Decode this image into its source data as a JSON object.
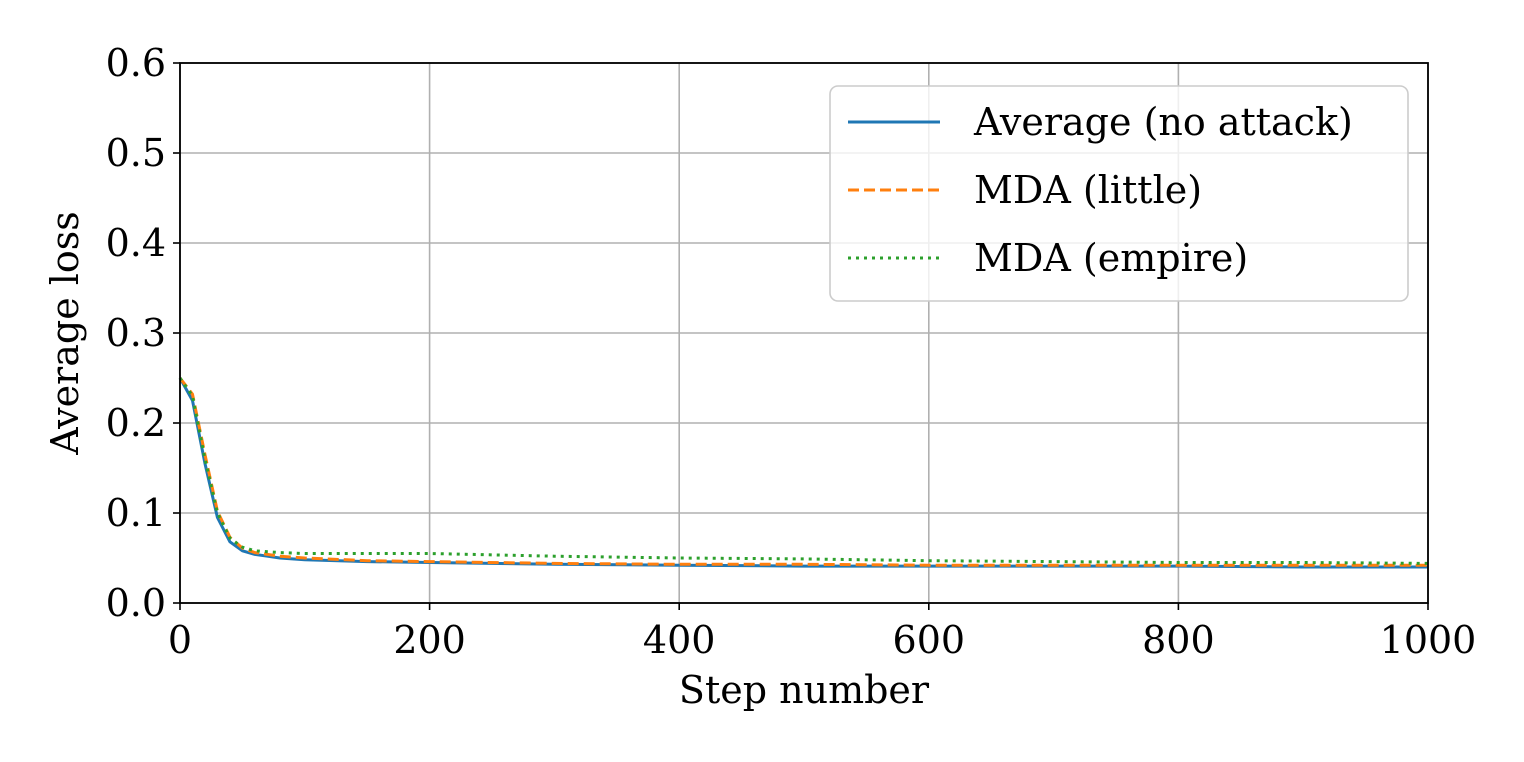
{
  "chart_data": {
    "type": "line",
    "title": "",
    "xlabel": "Step number",
    "ylabel": "Average loss",
    "xlim": [
      0,
      1000
    ],
    "ylim": [
      0.0,
      0.6
    ],
    "xticks": [
      0,
      200,
      400,
      600,
      800,
      1000
    ],
    "xtick_labels": [
      "0",
      "200",
      "400",
      "600",
      "800",
      "1000"
    ],
    "yticks": [
      0.0,
      0.1,
      0.2,
      0.3,
      0.4,
      0.5,
      0.6
    ],
    "ytick_labels": [
      "0.0",
      "0.1",
      "0.2",
      "0.3",
      "0.4",
      "0.5",
      "0.6"
    ],
    "grid": true,
    "legend_position": "top-right",
    "series": [
      {
        "name": "Average (no attack)",
        "color": "#1f77b4",
        "style": "solid",
        "x": [
          0,
          10,
          20,
          30,
          40,
          50,
          60,
          70,
          80,
          100,
          150,
          200,
          300,
          400,
          500,
          600,
          700,
          800,
          900,
          1000
        ],
        "y": [
          0.25,
          0.225,
          0.155,
          0.095,
          0.068,
          0.058,
          0.054,
          0.052,
          0.05,
          0.048,
          0.046,
          0.045,
          0.043,
          0.042,
          0.041,
          0.041,
          0.041,
          0.041,
          0.04,
          0.04
        ]
      },
      {
        "name": "MDA (little)",
        "color": "#ff7f0e",
        "style": "dashed",
        "x": [
          0,
          10,
          20,
          30,
          40,
          50,
          60,
          70,
          80,
          100,
          150,
          200,
          300,
          400,
          500,
          600,
          700,
          800,
          900,
          1000
        ],
        "y": [
          0.25,
          0.232,
          0.165,
          0.102,
          0.073,
          0.061,
          0.056,
          0.054,
          0.052,
          0.05,
          0.047,
          0.046,
          0.044,
          0.043,
          0.043,
          0.042,
          0.042,
          0.042,
          0.042,
          0.042
        ]
      },
      {
        "name": "MDA (empire)",
        "color": "#2ca02c",
        "style": "dotted",
        "x": [
          0,
          10,
          20,
          30,
          40,
          50,
          60,
          70,
          80,
          100,
          150,
          200,
          300,
          400,
          500,
          600,
          700,
          800,
          900,
          1000
        ],
        "y": [
          0.25,
          0.23,
          0.16,
          0.1,
          0.072,
          0.062,
          0.058,
          0.057,
          0.056,
          0.055,
          0.055,
          0.055,
          0.052,
          0.05,
          0.049,
          0.047,
          0.046,
          0.045,
          0.045,
          0.044
        ]
      }
    ]
  }
}
